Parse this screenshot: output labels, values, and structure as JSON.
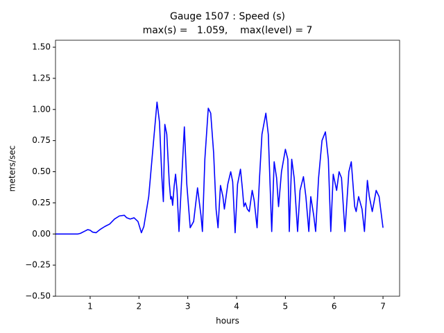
{
  "chart_data": {
    "type": "line",
    "title": "Gauge 1507 : Speed (s)",
    "subtitle": "max(s) =   1.059,    max(level) = 7",
    "x_label": "hours",
    "y_label": "meters/sec",
    "xlim": [
      0.29,
      7.34
    ],
    "ylim": [
      -0.5,
      1.556
    ],
    "xticks": [
      1,
      2,
      3,
      4,
      5,
      6,
      7
    ],
    "yticks": [
      {
        "value": -0.5,
        "label": "−0.50"
      },
      {
        "value": -0.25,
        "label": "−0.25"
      },
      {
        "value": 0,
        "label": "0.00"
      },
      {
        "value": 0.25,
        "label": "0.25"
      },
      {
        "value": 0.5,
        "label": "0.50"
      },
      {
        "value": 0.75,
        "label": "0.75"
      },
      {
        "value": 1,
        "label": "1.00"
      },
      {
        "value": 1.25,
        "label": "1.25"
      },
      {
        "value": 1.5,
        "label": "1.50"
      }
    ],
    "grid": false,
    "x": [
      0.29,
      0.75,
      0.8,
      0.9,
      0.95,
      1.0,
      1.05,
      1.12,
      1.2,
      1.3,
      1.4,
      1.5,
      1.6,
      1.7,
      1.75,
      1.82,
      1.9,
      1.98,
      2.05,
      2.1,
      2.2,
      2.3,
      2.37,
      2.42,
      2.47,
      2.5,
      2.53,
      2.57,
      2.62,
      2.65,
      2.67,
      2.69,
      2.72,
      2.75,
      2.78,
      2.82,
      2.87,
      2.93,
      2.98,
      3.05,
      3.12,
      3.2,
      3.27,
      3.3,
      3.35,
      3.42,
      3.47,
      3.53,
      3.58,
      3.62,
      3.67,
      3.72,
      3.75,
      3.82,
      3.88,
      3.92,
      3.97,
      4.02,
      4.08,
      4.12,
      4.15,
      4.18,
      4.22,
      4.26,
      4.32,
      4.36,
      4.42,
      4.47,
      4.52,
      4.6,
      4.65,
      4.72,
      4.77,
      4.82,
      4.86,
      4.92,
      5.0,
      5.05,
      5.08,
      5.13,
      5.18,
      5.25,
      5.3,
      5.37,
      5.42,
      5.48,
      5.52,
      5.58,
      5.62,
      5.68,
      5.75,
      5.82,
      5.88,
      5.93,
      5.98,
      6.05,
      6.1,
      6.15,
      6.22,
      6.3,
      6.35,
      6.42,
      6.45,
      6.5,
      6.57,
      6.62,
      6.68,
      6.72,
      6.78,
      6.86,
      6.92,
      7.0
    ],
    "series": [
      {
        "name": "s",
        "color": "#0000ff",
        "values": [
          0,
          0,
          0.005,
          0.025,
          0.035,
          0.03,
          0.015,
          0.01,
          0.035,
          0.06,
          0.08,
          0.12,
          0.145,
          0.15,
          0.13,
          0.12,
          0.13,
          0.1,
          0.01,
          0.06,
          0.3,
          0.75,
          1.059,
          0.9,
          0.45,
          0.26,
          0.88,
          0.8,
          0.42,
          0.28,
          0.3,
          0.23,
          0.38,
          0.48,
          0.35,
          0.02,
          0.4,
          0.86,
          0.4,
          0.05,
          0.1,
          0.37,
          0.15,
          0.02,
          0.6,
          1.01,
          0.97,
          0.65,
          0.2,
          0.05,
          0.39,
          0.3,
          0.2,
          0.4,
          0.5,
          0.42,
          0.01,
          0.4,
          0.52,
          0.36,
          0.22,
          0.25,
          0.2,
          0.18,
          0.35,
          0.27,
          0.05,
          0.45,
          0.8,
          0.97,
          0.8,
          0.02,
          0.58,
          0.45,
          0.22,
          0.5,
          0.68,
          0.6,
          0.02,
          0.6,
          0.45,
          0.02,
          0.35,
          0.46,
          0.3,
          0.02,
          0.3,
          0.15,
          0.02,
          0.45,
          0.75,
          0.82,
          0.6,
          0.02,
          0.48,
          0.35,
          0.5,
          0.45,
          0.02,
          0.5,
          0.58,
          0.22,
          0.18,
          0.3,
          0.2,
          0.02,
          0.43,
          0.3,
          0.18,
          0.35,
          0.3,
          0.05
        ]
      }
    ]
  }
}
